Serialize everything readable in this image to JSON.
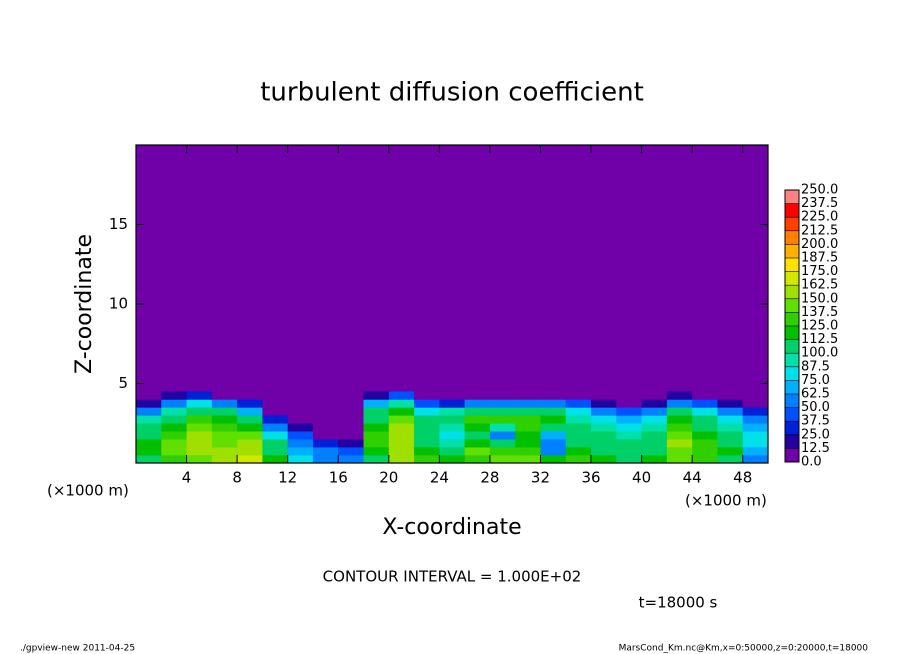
{
  "chart_data": {
    "type": "heatmap",
    "title": "turbulent diffusion coefficient",
    "xlabel": "X-coordinate",
    "ylabel": "Z-coordinate",
    "x_unit": "(×1000 m)",
    "contour_interval": "CONTOUR INTERVAL = 1.000E+02",
    "time_label": "t=18000 s",
    "footer_left": "./gpview-new  2011-04-25",
    "footer_right": "MarsCond_Km.nc@Km,x=0:50000,z=0:20000,t=18000",
    "xlim": [
      0,
      50
    ],
    "ylim": [
      0,
      20
    ],
    "xticks": [
      4,
      8,
      12,
      16,
      20,
      24,
      28,
      32,
      36,
      40,
      44,
      48
    ],
    "yticks": [
      5,
      10,
      15
    ],
    "x": [
      1,
      3,
      5,
      7,
      9,
      11,
      13,
      15,
      17,
      19,
      21,
      23,
      25,
      27,
      29,
      31,
      33,
      35,
      37,
      39,
      41,
      43,
      45,
      47,
      49
    ],
    "y": [
      0.25,
      0.75,
      1.25,
      1.75,
      2.25,
      2.75,
      3.25,
      3.75,
      4.25
    ],
    "z": [
      [
        110,
        130,
        140,
        150,
        170,
        120,
        80,
        60,
        50,
        110,
        150,
        130,
        120,
        130,
        140,
        140,
        120,
        130,
        120,
        110,
        120,
        140,
        130,
        110,
        60
      ],
      [
        120,
        140,
        150,
        150,
        160,
        110,
        70,
        50,
        40,
        120,
        160,
        120,
        110,
        140,
        130,
        130,
        60,
        120,
        110,
        100,
        110,
        140,
        130,
        120,
        70
      ],
      [
        120,
        140,
        160,
        140,
        150,
        100,
        60,
        30,
        20,
        130,
        150,
        110,
        90,
        120,
        100,
        120,
        50,
        110,
        100,
        100,
        110,
        150,
        130,
        110,
        80
      ],
      [
        110,
        130,
        150,
        140,
        140,
        80,
        40,
        10,
        5,
        130,
        160,
        100,
        80,
        110,
        60,
        120,
        70,
        110,
        100,
        90,
        100,
        140,
        120,
        100,
        80
      ],
      [
        100,
        120,
        140,
        130,
        120,
        60,
        20,
        0,
        0,
        120,
        150,
        110,
        90,
        120,
        90,
        130,
        110,
        100,
        90,
        80,
        90,
        130,
        110,
        90,
        70
      ],
      [
        90,
        110,
        130,
        120,
        100,
        30,
        5,
        0,
        0,
        110,
        140,
        100,
        100,
        130,
        130,
        130,
        120,
        90,
        80,
        70,
        80,
        120,
        100,
        80,
        50
      ],
      [
        60,
        90,
        110,
        100,
        70,
        10,
        0,
        0,
        0,
        100,
        120,
        80,
        90,
        110,
        110,
        110,
        100,
        80,
        60,
        40,
        60,
        100,
        80,
        60,
        30
      ],
      [
        20,
        60,
        80,
        60,
        30,
        0,
        0,
        0,
        0,
        70,
        90,
        40,
        30,
        60,
        60,
        50,
        50,
        40,
        20,
        10,
        20,
        60,
        40,
        20,
        10
      ],
      [
        0,
        20,
        30,
        10,
        0,
        0,
        0,
        0,
        0,
        20,
        40,
        10,
        0,
        10,
        10,
        10,
        10,
        5,
        0,
        0,
        0,
        20,
        10,
        0,
        0
      ]
    ],
    "colorbar_ticks": [
      {
        "value": 0,
        "label": "0.0"
      },
      {
        "value": 12.5,
        "label": "12.5"
      },
      {
        "value": 25,
        "label": "25.0"
      },
      {
        "value": 37.5,
        "label": "37.5"
      },
      {
        "value": 50,
        "label": "50.0"
      },
      {
        "value": 62.5,
        "label": "62.5"
      },
      {
        "value": 75,
        "label": "75.0"
      },
      {
        "value": 87.5,
        "label": "87.5"
      },
      {
        "value": 100,
        "label": "100.0"
      },
      {
        "value": 112.5,
        "label": "112.5"
      },
      {
        "value": 125,
        "label": "125.0"
      },
      {
        "value": 137.5,
        "label": "137.5"
      },
      {
        "value": 150,
        "label": "150.0"
      },
      {
        "value": 162.5,
        "label": "162.5"
      },
      {
        "value": 175,
        "label": "175.0"
      },
      {
        "value": 187.5,
        "label": "187.5"
      },
      {
        "value": 200,
        "label": "200.0"
      },
      {
        "value": 212.5,
        "label": "212.5"
      },
      {
        "value": 225,
        "label": "225.0"
      },
      {
        "value": 237.5,
        "label": "237.5"
      },
      {
        "value": 250,
        "label": "250.0"
      }
    ],
    "colors": [
      "#7000a8",
      "#2400a0",
      "#0020d8",
      "#0050ff",
      "#0080ff",
      "#00b0ff",
      "#00e0e8",
      "#00e0a8",
      "#00d068",
      "#00c000",
      "#30d000",
      "#60e000",
      "#a0e000",
      "#d0e800",
      "#ffe000",
      "#ffb000",
      "#ff8000",
      "#ff4000",
      "#ff0000",
      "#ff8080"
    ]
  }
}
